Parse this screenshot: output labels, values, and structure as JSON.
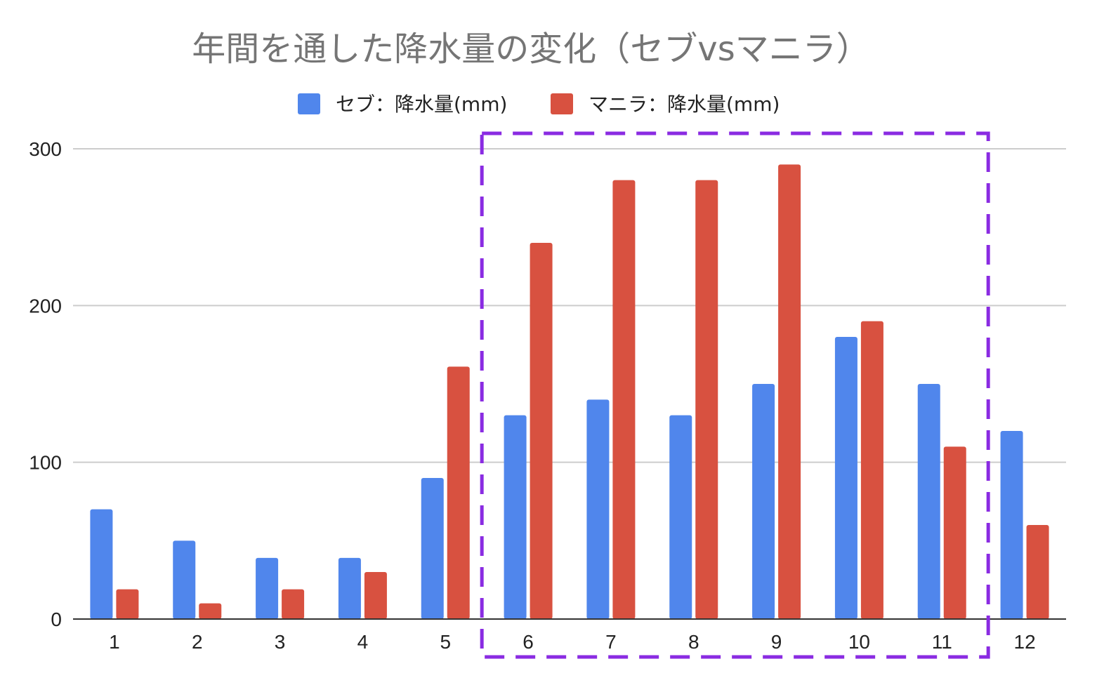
{
  "chart_data": {
    "type": "bar",
    "title": "年間を通した降水量の変化（セブvsマニラ）",
    "categories": [
      "1",
      "2",
      "3",
      "4",
      "5",
      "6",
      "7",
      "8",
      "9",
      "10",
      "11",
      "12"
    ],
    "series": [
      {
        "name": "セブ：降水量(mm)",
        "color": "#5086ec",
        "values": [
          70,
          50,
          39,
          39,
          90,
          130,
          140,
          130,
          150,
          180,
          150,
          120
        ]
      },
      {
        "name": "マニラ：降水量(mm)",
        "color": "#d85140",
        "values": [
          19,
          10,
          19,
          30,
          161,
          240,
          280,
          280,
          290,
          190,
          110,
          60
        ]
      }
    ],
    "xlabel": "",
    "ylabel": "",
    "ylim": [
      0,
      300
    ],
    "yticks": [
      0,
      100,
      200,
      300
    ],
    "grid": true,
    "legend_position": "top",
    "highlight": {
      "from_category": "6",
      "to_category": "11",
      "style": "dashed",
      "color": "#8a2be2"
    }
  }
}
